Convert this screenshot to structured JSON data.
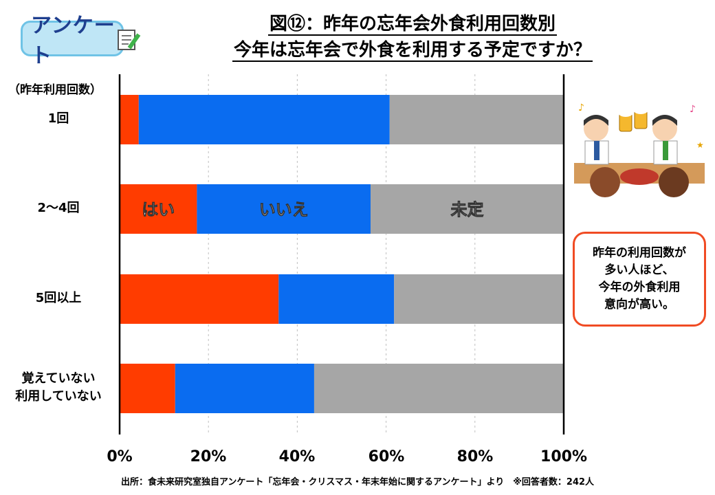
{
  "badge": {
    "label": "アンケート"
  },
  "title": {
    "line1": "図⑫：昨年の忘年会外食利用回数別",
    "line2": "今年は忘年会で外食を利用する予定ですか？"
  },
  "callout": {
    "lines": [
      "昨年の利用回数が",
      "多い人ほど、",
      "今年の外食利用",
      "意向が高い。"
    ]
  },
  "footer": "出所：食未来研究室独自アンケート「忘年会・クリスマス・年末年始に関するアンケート」より　※回答者数：242人",
  "colors": {
    "yes": "#ff3c00",
    "no": "#0a6cf0",
    "undecided": "#a6a6a6"
  },
  "chart_data": {
    "type": "bar",
    "orientation": "horizontal",
    "stacked": true,
    "category_header": "（昨年利用回数）",
    "categories": [
      "1回",
      "2〜4回",
      "5回以上",
      "覚えていない\n利用していない"
    ],
    "series": [
      {
        "name": "はい",
        "values": [
          4.3,
          17.4,
          35.8,
          12.5
        ]
      },
      {
        "name": "いいえ",
        "values": [
          56.5,
          39.1,
          26.0,
          31.3
        ]
      },
      {
        "name": "未定",
        "values": [
          39.2,
          43.5,
          38.2,
          56.2
        ]
      }
    ],
    "xlim": [
      0,
      100
    ],
    "x_ticks": [
      "0%",
      "20%",
      "40%",
      "60%",
      "80%",
      "100%"
    ],
    "grid": true,
    "legend": "inside second bar"
  }
}
